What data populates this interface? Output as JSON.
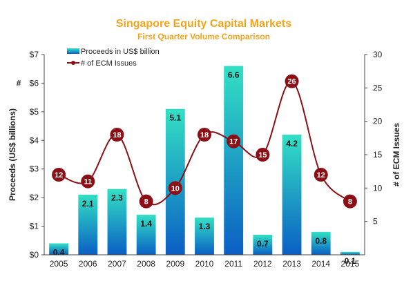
{
  "chart_data": {
    "type": "bar",
    "title": "Singapore Equity Capital Markets",
    "subtitle": "First Quarter Volume Comparison",
    "categories": [
      "2005",
      "2006",
      "2007",
      "2008",
      "2009",
      "2010",
      "2011",
      "2012",
      "2013",
      "2014",
      "2015"
    ],
    "series": [
      {
        "name": "Proceeds in US$ billion",
        "type": "bar",
        "axis": "left",
        "values": [
          0.4,
          2.1,
          2.3,
          1.4,
          5.1,
          1.3,
          6.6,
          0.7,
          4.2,
          0.8,
          0.1
        ]
      },
      {
        "name": "# of ECM Issues",
        "type": "line",
        "axis": "right",
        "values": [
          12,
          11,
          18,
          8,
          10,
          18,
          17,
          15,
          26,
          12,
          8
        ]
      }
    ],
    "ylabel": "Proceeds (US$ billions)",
    "y2label": "# of ECM Issues",
    "ylim": [
      0,
      7
    ],
    "y2lim": [
      0,
      30
    ],
    "yticks": [
      "$0",
      "$1",
      "$2",
      "$3",
      "$4",
      "$5",
      "$6",
      "$7"
    ],
    "y2ticks": [
      "5",
      "10",
      "15",
      "20",
      "25",
      "30"
    ],
    "legend_position": "top-left",
    "grid": false,
    "colors": {
      "bar_top": "#33e0c4",
      "bar_bottom": "#0a5fc4",
      "line": "#8b1016",
      "title": "#f5a21b"
    },
    "annotations": [
      "#"
    ]
  }
}
